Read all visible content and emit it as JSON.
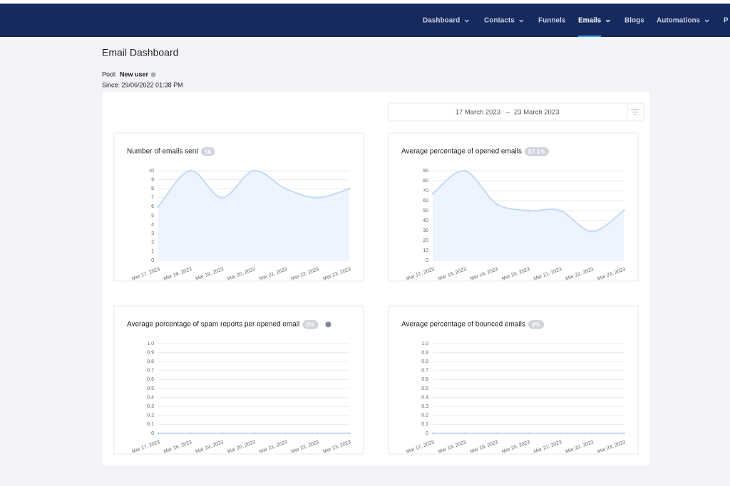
{
  "nav": [
    "Dashboard",
    "Contacts",
    "Funnels",
    "Emails",
    "Blogs",
    "Automations",
    "P"
  ],
  "page": {
    "title": "Email Dashboard",
    "pool_label": "Pool:",
    "pool_value": "New user",
    "since": "Since: 29/06/2022 01:38 PM"
  },
  "date_range": {
    "start": "17 March 2023",
    "separator": "–",
    "end": "23 March 2023"
  },
  "chart_data": [
    {
      "type": "line",
      "title": "Number of emails sent",
      "badge": "56",
      "categories": [
        "Mar 17, 2023",
        "Mar 18, 2023",
        "Mar 19, 2023",
        "Mar 20, 2023",
        "Mar 21, 2023",
        "Mar 22, 2023",
        "Mar 23, 2023"
      ],
      "values": [
        6,
        10,
        7,
        10,
        8,
        7,
        8
      ],
      "color": "#c4dbf6",
      "ylim": [
        0,
        10
      ],
      "yticks": [
        0,
        1,
        2,
        3,
        4,
        5,
        6,
        7,
        8,
        9,
        10
      ],
      "grid": true
    },
    {
      "type": "line",
      "title": "Average percentage of opened emails",
      "badge": "57.1%",
      "categories": [
        "Mar 17, 2023",
        "Mar 18, 2023",
        "Mar 19, 2023",
        "Mar 20, 2023",
        "Mar 21, 2023",
        "Mar 22, 2023",
        "Mar 23, 2023"
      ],
      "values": [
        67,
        90,
        57,
        50,
        50,
        29,
        50
      ],
      "color": "#c4dbf6",
      "ylim": [
        0,
        90
      ],
      "yticks": [
        0,
        10,
        20,
        30,
        40,
        50,
        60,
        70,
        80,
        90
      ],
      "grid": true
    },
    {
      "type": "line",
      "title": "Average percentage of spam reports per opened email",
      "badge": "0%",
      "categories": [
        "Mar 17, 2023",
        "Mar 18, 2023",
        "Mar 19, 2023",
        "Mar 20, 2023",
        "Mar 21, 2023",
        "Mar 22, 2023",
        "Mar 23, 2023"
      ],
      "values": [
        0,
        0,
        0,
        0,
        0,
        0,
        0
      ],
      "color": "#c4dbf6",
      "ylim": [
        0,
        1
      ],
      "yticks": [
        0,
        0.1,
        0.2,
        0.3,
        0.4,
        0.5,
        0.6,
        0.7,
        0.8,
        0.9,
        {
          "value": 1,
          "label": "1.0"
        }
      ],
      "grid": true
    },
    {
      "type": "line",
      "title": "Average percentage of bounced emails",
      "badge": "0%",
      "categories": [
        "Mar 17, 2023",
        "Mar 18, 2023",
        "Mar 19, 2023",
        "Mar 20, 2023",
        "Mar 21, 2023",
        "Mar 22, 2023",
        "Mar 23, 2023"
      ],
      "values": [
        0,
        0,
        0,
        0,
        0,
        0,
        0
      ],
      "color": "#c4dbf6",
      "ylim": [
        0,
        1
      ],
      "yticks": [
        0,
        0.1,
        0.2,
        0.3,
        0.4,
        0.5,
        0.6,
        0.7,
        0.8,
        0.9,
        {
          "value": 1,
          "label": "1.0"
        }
      ],
      "grid": true
    }
  ]
}
